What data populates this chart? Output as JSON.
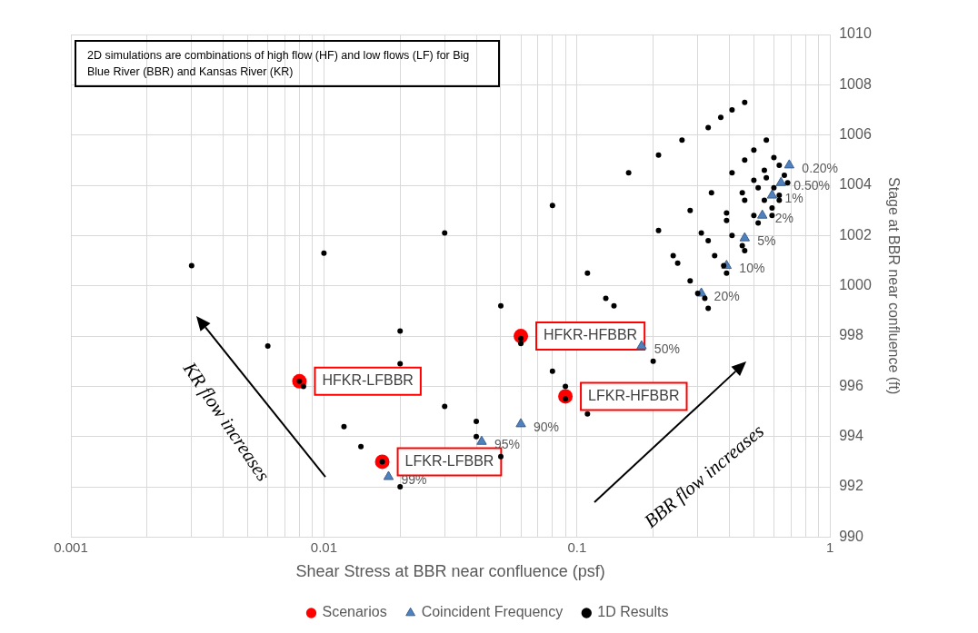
{
  "chart_data": {
    "type": "scatter",
    "xlabel": "Shear Stress at BBR near confluence (psf)",
    "ylabel": "Stage at BBR near confluence (ft)",
    "annotations": [
      "2D simulations are combinations of high flow (HF) and low flows (LF) for Big Blue River (BBR) and Kansas River (KR)",
      "KR flow increases",
      "BBR flow increases",
      {
        "text": "0.20%",
        "x": 0.69,
        "y": 1004.8
      },
      {
        "text": "0.50%",
        "x": 0.64,
        "y": 1004.1
      },
      {
        "text": "1%",
        "x": 0.59,
        "y": 1003.6
      },
      {
        "text": "2%",
        "x": 0.54,
        "y": 1002.8
      },
      {
        "text": "5%",
        "x": 0.46,
        "y": 1001.9
      },
      {
        "text": "10%",
        "x": 0.39,
        "y": 1000.8
      },
      {
        "text": "20%",
        "x": 0.31,
        "y": 999.7
      },
      {
        "text": "50%",
        "x": 0.18,
        "y": 997.6
      },
      {
        "text": "90%",
        "x": 0.06,
        "y": 994.5
      },
      {
        "text": "95%",
        "x": 0.042,
        "y": 993.8
      },
      {
        "text": "99%",
        "x": 0.018,
        "y": 992.4
      }
    ],
    "log": "x",
    "grid": true,
    "legend": "bottom",
    "xlim": [
      0.001,
      1
    ],
    "xticks": [
      0.001,
      {
        "value": 0.002,
        "label": null
      },
      {
        "value": 0.003,
        "label": null
      },
      {
        "value": 0.004,
        "label": null
      },
      {
        "value": 0.005,
        "label": null
      },
      {
        "value": 0.006,
        "label": null
      },
      {
        "value": 0.007,
        "label": null
      },
      {
        "value": 0.008,
        "label": null
      },
      {
        "value": 0.009,
        "label": null
      },
      0.01,
      {
        "value": 0.02,
        "label": null
      },
      {
        "value": 0.03,
        "label": null
      },
      {
        "value": 0.04,
        "label": null
      },
      {
        "value": 0.05,
        "label": null
      },
      {
        "value": 0.06,
        "label": null
      },
      {
        "value": 0.07,
        "label": null
      },
      {
        "value": 0.08,
        "label": null
      },
      {
        "value": 0.09,
        "label": null
      },
      0.1,
      {
        "value": 0.2,
        "label": null
      },
      {
        "value": 0.3,
        "label": null
      },
      {
        "value": 0.4,
        "label": null
      },
      {
        "value": 0.5,
        "label": null
      },
      {
        "value": 0.6,
        "label": null
      },
      {
        "value": 0.7,
        "label": null
      },
      {
        "value": 0.8,
        "label": null
      },
      {
        "value": 0.9,
        "label": null
      },
      1
    ],
    "ylim": [
      990,
      1010
    ],
    "yticks": [
      990,
      992,
      994,
      996,
      998,
      1000,
      1002,
      1004,
      1006,
      1008,
      1010
    ],
    "series": [
      {
        "name": "Scenarios",
        "color": "#ff0000",
        "marker": "circle",
        "x": [
          0.008,
          0.017,
          0.06,
          0.09
        ],
        "values": [
          996.2,
          993.0,
          998.0,
          995.6
        ],
        "value_labels": [
          "HFKR-LFBBR",
          "LFKR-LFBBR",
          "HFKR-HFBBR",
          "LFKR-HFBBR"
        ]
      },
      {
        "name": "Coincident Frequency",
        "color": "#4f81bd",
        "marker": "triangle",
        "x": [
          0.69,
          0.64,
          0.59,
          0.54,
          0.46,
          0.39,
          0.31,
          0.18,
          0.06,
          0.042,
          0.018
        ],
        "values": [
          1004.8,
          1004.1,
          1003.6,
          1002.8,
          1001.9,
          1000.8,
          999.7,
          997.6,
          994.5,
          993.8,
          992.4
        ]
      },
      {
        "name": "1D Results",
        "color": "#000000",
        "marker": "circle",
        "x": [
          0.003,
          0.01,
          0.03,
          0.08,
          0.11,
          0.13,
          0.14,
          0.05,
          0.02,
          0.006,
          0.02,
          0.06,
          0.06,
          0.008,
          0.0083,
          0.08,
          0.09,
          0.09,
          0.11,
          0.03,
          0.012,
          0.04,
          0.04,
          0.014,
          0.017,
          0.05,
          0.02,
          0.2,
          0.46,
          0.41,
          0.37,
          0.33,
          0.26,
          0.56,
          0.21,
          0.6,
          0.5,
          0.46,
          0.63,
          0.16,
          0.41,
          0.55,
          0.66,
          0.56,
          0.5,
          0.68,
          0.52,
          0.6,
          0.34,
          0.45,
          0.63,
          0.55,
          0.46,
          0.63,
          0.59,
          0.28,
          0.39,
          0.5,
          0.59,
          0.39,
          0.52,
          0.21,
          0.31,
          0.33,
          0.41,
          0.45,
          0.46,
          0.24,
          0.25,
          0.35,
          0.38,
          0.39,
          0.28,
          0.3,
          0.32,
          0.33
        ],
        "values": [
          1000.8,
          1001.3,
          1002.1,
          1003.2,
          1000.5,
          999.5,
          999.2,
          999.2,
          998.2,
          997.6,
          996.9,
          997.9,
          997.7,
          996.2,
          996.0,
          996.6,
          996.0,
          995.5,
          994.9,
          995.2,
          994.4,
          994.6,
          994.0,
          993.6,
          993.0,
          993.2,
          992.0,
          997.0,
          1007.3,
          1007.0,
          1006.7,
          1006.3,
          1005.8,
          1005.8,
          1005.2,
          1005.1,
          1005.4,
          1005.0,
          1004.8,
          1004.5,
          1004.5,
          1004.6,
          1004.4,
          1004.3,
          1004.2,
          1004.1,
          1003.9,
          1003.9,
          1003.7,
          1003.7,
          1003.6,
          1003.4,
          1003.4,
          1003.4,
          1003.1,
          1003.0,
          1002.9,
          1002.8,
          1002.8,
          1002.6,
          1002.5,
          1002.2,
          1002.1,
          1001.8,
          1002.0,
          1001.6,
          1001.4,
          1001.2,
          1000.9,
          1001.2,
          1000.8,
          1000.5,
          1000.2,
          999.7,
          999.5,
          999.1
        ]
      }
    ]
  }
}
